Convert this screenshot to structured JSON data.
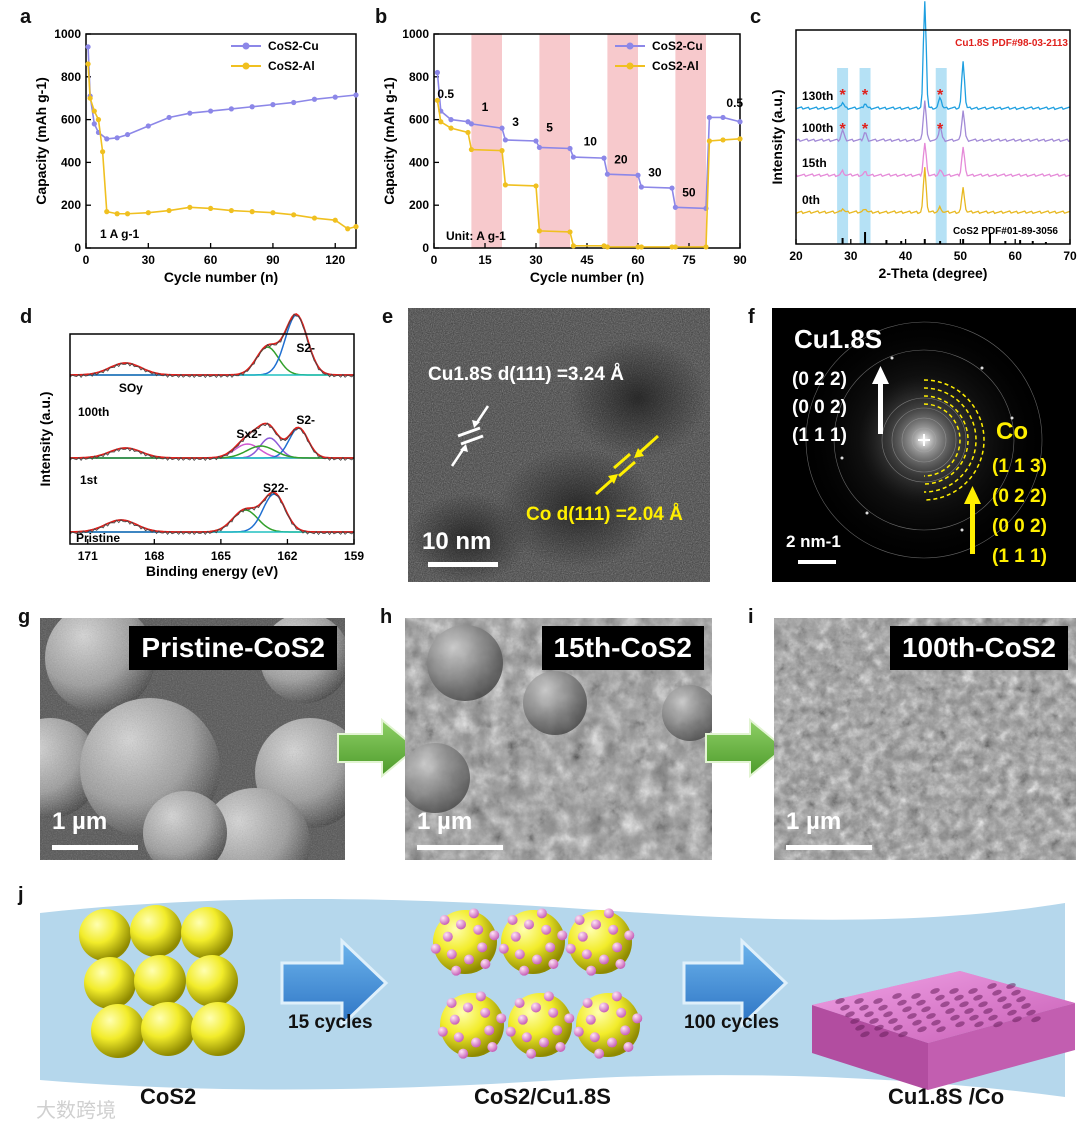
{
  "panels": {
    "a": "a",
    "b": "b",
    "c": "c",
    "d": "d",
    "e": "e",
    "f": "f",
    "g": "g",
    "h": "h",
    "i": "i",
    "j": "j"
  },
  "colors": {
    "cu": "#8c87e8",
    "al": "#f0c020",
    "xrd_blue": "#1e9fe0",
    "xrd_purple": "#a28ad6",
    "xrd_pink": "#e58ad8",
    "xrd_yellow": "#e8b820",
    "highlight_blue": "#a8dcf3",
    "highlight_pink": "#f7c9cc"
  },
  "chart_data": [
    {
      "id": "a",
      "type": "scatter",
      "xlabel": "Cycle number (n)",
      "ylabel": "Capacity (mAh g-1)",
      "xlim": [
        0,
        130
      ],
      "ylim": [
        0,
        1000
      ],
      "xticks": [
        "0",
        "30",
        "60",
        "90",
        "120"
      ],
      "yticks": [
        "0",
        "200",
        "400",
        "600",
        "800",
        "1000"
      ],
      "annotation": "1 A g-1",
      "series": [
        {
          "name": "CoS2-Cu",
          "x": [
            1,
            2,
            4,
            6,
            10,
            15,
            20,
            30,
            40,
            50,
            60,
            70,
            80,
            90,
            100,
            110,
            120,
            130
          ],
          "values": [
            940,
            710,
            580,
            540,
            510,
            515,
            530,
            570,
            610,
            630,
            640,
            650,
            660,
            670,
            680,
            695,
            705,
            715
          ]
        },
        {
          "name": "CoS2-Al",
          "x": [
            1,
            2,
            4,
            6,
            8,
            10,
            15,
            20,
            30,
            40,
            50,
            60,
            70,
            80,
            90,
            100,
            110,
            120,
            126,
            130
          ],
          "values": [
            860,
            700,
            640,
            600,
            450,
            170,
            160,
            160,
            165,
            175,
            190,
            185,
            175,
            170,
            165,
            155,
            140,
            130,
            90,
            100
          ]
        }
      ],
      "legend": "top-right"
    },
    {
      "id": "b",
      "type": "scatter",
      "xlabel": "Cycle number (n)",
      "ylabel": "Capacity (mAh g-1)",
      "xlim": [
        0,
        90
      ],
      "ylim": [
        0,
        1000
      ],
      "xticks": [
        "0",
        "15",
        "30",
        "45",
        "60",
        "75",
        "90"
      ],
      "yticks": [
        "0",
        "200",
        "400",
        "600",
        "800",
        "1000"
      ],
      "annotation": "Unit: A g-1",
      "rate_labels": [
        "0.5",
        "1",
        "3",
        "5",
        "10",
        "20",
        "30",
        "50",
        "0.5"
      ],
      "series": [
        {
          "name": "CoS2-Cu",
          "x": [
            1,
            2,
            5,
            10,
            11,
            20,
            21,
            30,
            31,
            40,
            41,
            50,
            51,
            60,
            61,
            70,
            71,
            80,
            81,
            85,
            90
          ],
          "values": [
            820,
            640,
            600,
            590,
            580,
            560,
            505,
            500,
            470,
            465,
            425,
            420,
            345,
            340,
            285,
            280,
            190,
            185,
            610,
            610,
            590
          ]
        },
        {
          "name": "CoS2-Al",
          "x": [
            1,
            2,
            5,
            10,
            11,
            20,
            21,
            30,
            31,
            40,
            41,
            50,
            51,
            60,
            61,
            70,
            71,
            80,
            81,
            85,
            90
          ],
          "values": [
            690,
            590,
            560,
            540,
            460,
            455,
            295,
            290,
            80,
            75,
            10,
            10,
            5,
            5,
            5,
            5,
            5,
            5,
            500,
            505,
            510
          ]
        }
      ],
      "legend": "top-right"
    },
    {
      "id": "c",
      "type": "line",
      "xlabel": "2-Theta (degree)",
      "ylabel": "Intensity (a.u.)",
      "xlim": [
        20,
        70
      ],
      "xticks": [
        "20",
        "30",
        "40",
        "50",
        "60",
        "70"
      ],
      "legend_text": "Cu1.8S PDF#98-03-2113",
      "reference_text": "CoS2 PDF#01-89-3056",
      "series_names": [
        "130th",
        "100th",
        "15th",
        "0th"
      ],
      "peak_positions": [
        28.5,
        32.6,
        43.5,
        46.3,
        50.5,
        55.4
      ]
    },
    {
      "id": "d",
      "type": "line",
      "xlabel": "Binding energy (eV)",
      "ylabel": "Intensity (a.u.)",
      "xlim": [
        171,
        159
      ],
      "xticks": [
        "171",
        "168",
        "165",
        "162",
        "159"
      ],
      "series_names": [
        "100th",
        "1st",
        "Pristine"
      ],
      "peak_labels": [
        "SOy",
        "S2-",
        "Sx2-",
        "S2-",
        "S22-"
      ]
    }
  ],
  "tem": {
    "cu_label": "Cu1.8S d(111) =3.24 Å",
    "co_label": "Co d(111) =2.04 Å",
    "scale": "10 nm"
  },
  "fft": {
    "cu_title": "Cu1.8S",
    "cu_planes": [
      "(0 2 2)",
      "(0 0 2)",
      "(1 1 1)"
    ],
    "co_title": "Co",
    "co_planes": [
      "(1 1 3)",
      "(0 2 2)",
      "(0 0 2)",
      "(1 1 1)"
    ],
    "scale": "2 nm-1"
  },
  "sem": [
    {
      "title": "Pristine-CoS2",
      "scale": "1 µm"
    },
    {
      "title": "15th-CoS2",
      "scale": "1 µm"
    },
    {
      "title": "100th-CoS2",
      "scale": "1 µm"
    }
  ],
  "schematic": {
    "step1": "15 cycles",
    "step2": "100 cycles",
    "label1": "CoS2",
    "label2": "CoS2/Cu1.8S",
    "label3": "Cu1.8S /Co"
  },
  "watermark": "大数跨境"
}
